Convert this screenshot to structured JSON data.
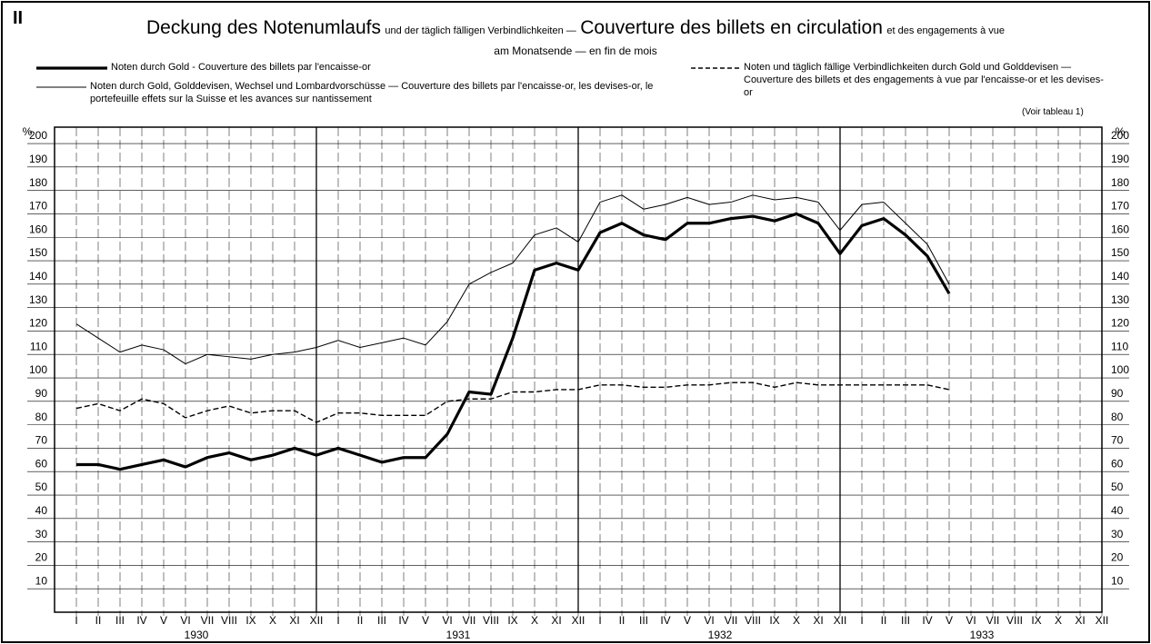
{
  "chart_data": {
    "type": "line",
    "panel_label": "II",
    "title": "Deckung des Notenumlaufs",
    "title_note": "und der täglich fälligen Verbindlichkeiten —",
    "title_fr": "Couverture des billets en circulation",
    "title_fr_note": "et des engagements à vue",
    "subtitle": "am Monatsende — en fin de mois",
    "note": "(Voir tableau 1)",
    "ylabel": "%",
    "years": [
      "1930",
      "1931",
      "1932",
      "1933"
    ],
    "categories": [
      "I",
      "II",
      "III",
      "IV",
      "V",
      "VI",
      "VII",
      "VIII",
      "IX",
      "X",
      "XI",
      "XII",
      "I",
      "II",
      "III",
      "IV",
      "V",
      "VI",
      "VII",
      "VIII",
      "IX",
      "X",
      "XI",
      "XII",
      "I",
      "II",
      "III",
      "IV",
      "V",
      "VI",
      "VII",
      "VIII",
      "IX",
      "X",
      "XI",
      "XII",
      "I",
      "II",
      "III",
      "IV",
      "V",
      "VI",
      "VII",
      "VIII",
      "IX",
      "X",
      "XI",
      "XII"
    ],
    "series": [
      {
        "name": "Noten durch Gold - Couverture des billets par l'encaisse-or",
        "color": "#000000",
        "line_width": 3.2,
        "dashed": false,
        "values": [
          63,
          63,
          61,
          63,
          65,
          62,
          66,
          68,
          65,
          67,
          70,
          67,
          70,
          67,
          64,
          66,
          66,
          76,
          94,
          93,
          117,
          146,
          149,
          146,
          162,
          166,
          161,
          159,
          166,
          166,
          168,
          169,
          167,
          170,
          166,
          153,
          165,
          168,
          161,
          152,
          136,
          null,
          null,
          null,
          null,
          null,
          null,
          null
        ]
      },
      {
        "name": "Noten durch Gold, Golddevisen, Wechsel und Lombardvorschüsse — Couverture des billets par l'encaisse-or, les devises-or, le portefeuille effets sur la Suisse et les avances sur nantissement",
        "color": "#000000",
        "line_width": 1,
        "dashed": false,
        "values": [
          123,
          117,
          111,
          114,
          112,
          106,
          110,
          109,
          108,
          110,
          111,
          113,
          116,
          113,
          115,
          117,
          114,
          124,
          140,
          145,
          149,
          161,
          164,
          158,
          175,
          178,
          172,
          174,
          177,
          174,
          175,
          178,
          176,
          177,
          175,
          163,
          174,
          175,
          166,
          157,
          140,
          null,
          null,
          null,
          null,
          null,
          null,
          null
        ]
      },
      {
        "name": "Noten und täglich fällige Verbindlichkeiten durch Gold und Golddevisen — Couverture des billets et des engagements à vue par l'encaisse-or et les devises-or",
        "color": "#000000",
        "line_width": 1.4,
        "dashed": true,
        "values": [
          87,
          89,
          86,
          91,
          89,
          83,
          86,
          88,
          85,
          86,
          86,
          81,
          85,
          85,
          84,
          84,
          84,
          90,
          91,
          91,
          94,
          94,
          95,
          95,
          97,
          97,
          96,
          96,
          97,
          97,
          98,
          98,
          96,
          98,
          97,
          97,
          97,
          97,
          97,
          97,
          95,
          null,
          null,
          null,
          null,
          null,
          null,
          null
        ]
      }
    ],
    "ylim": [
      0,
      207
    ],
    "yticks": [
      10,
      20,
      30,
      40,
      50,
      60,
      70,
      80,
      90,
      100,
      110,
      120,
      130,
      140,
      150,
      160,
      170,
      180,
      190,
      200
    ],
    "grid": true
  }
}
